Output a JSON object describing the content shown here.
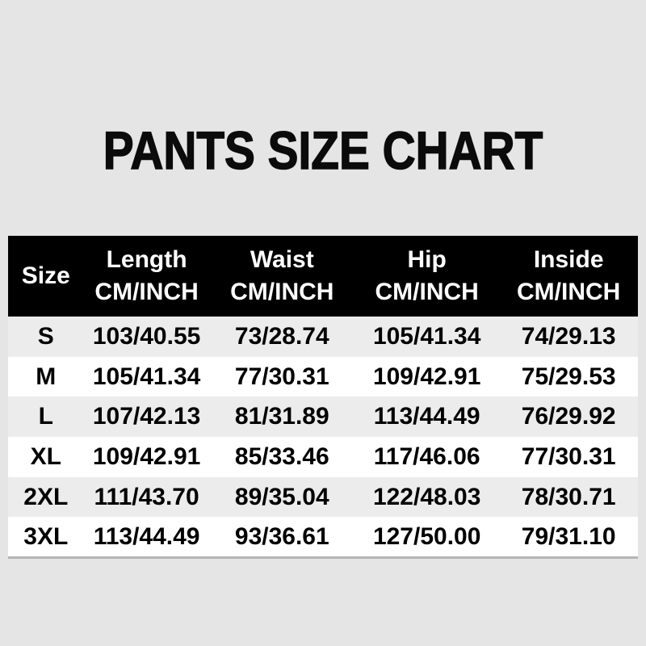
{
  "title": "PANTS SIZE CHART",
  "table": {
    "size_header": "Size",
    "unit_label": "CM/INCH",
    "columns": [
      "Length",
      "Waist",
      "Hip",
      "Inside"
    ],
    "rows": [
      {
        "size": "S",
        "values": [
          "103/40.55",
          "73/28.74",
          "105/41.34",
          "74/29.13"
        ]
      },
      {
        "size": "M",
        "values": [
          "105/41.34",
          "77/30.31",
          "109/42.91",
          "75/29.53"
        ]
      },
      {
        "size": "L",
        "values": [
          "107/42.13",
          "81/31.89",
          "113/44.49",
          "76/29.92"
        ]
      },
      {
        "size": "XL",
        "values": [
          "109/42.91",
          "85/33.46",
          "117/46.06",
          "77/30.31"
        ]
      },
      {
        "size": "2XL",
        "values": [
          "111/43.70",
          "89/35.04",
          "122/48.03",
          "78/30.71"
        ]
      },
      {
        "size": "3XL",
        "values": [
          "113/44.49",
          "93/36.61",
          "127/50.00",
          "79/31.10"
        ]
      }
    ]
  },
  "chart_data": {
    "type": "table",
    "title": "PANTS SIZE CHART",
    "columns": [
      "Size",
      "Length CM/INCH",
      "Waist CM/INCH",
      "Hip CM/INCH",
      "Inside CM/INCH"
    ],
    "rows": [
      [
        "S",
        "103/40.55",
        "73/28.74",
        "105/41.34",
        "74/29.13"
      ],
      [
        "M",
        "105/41.34",
        "77/30.31",
        "109/42.91",
        "75/29.53"
      ],
      [
        "L",
        "107/42.13",
        "81/31.89",
        "113/44.49",
        "76/29.92"
      ],
      [
        "XL",
        "109/42.91",
        "85/33.46",
        "117/46.06",
        "77/30.31"
      ],
      [
        "2XL",
        "111/43.70",
        "89/35.04",
        "122/48.03",
        "78/30.71"
      ],
      [
        "3XL",
        "113/44.49",
        "93/36.61",
        "127/50.00",
        "79/31.10"
      ]
    ]
  },
  "colors": {
    "page_bg": "#e5e5e5",
    "title_text": "#0b0b0b",
    "header_bg": "#000000",
    "header_text": "#ffffff",
    "row_stripe_bg": "#ececec",
    "row_white_bg": "#ffffff",
    "body_text": "#000000",
    "table_bottom_border": "#b5b5b5"
  }
}
